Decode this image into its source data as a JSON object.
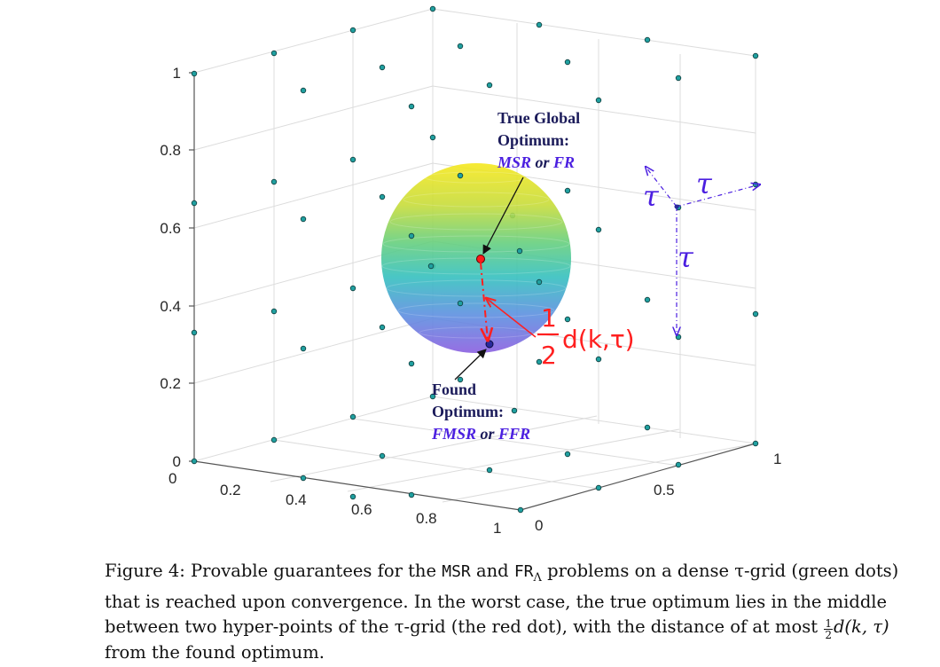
{
  "figure": {
    "z_ticks": [
      "0",
      "0.2",
      "0.4",
      "0.6",
      "0.8",
      "1"
    ],
    "x_ticks": [
      "0",
      "0.2",
      "0.4",
      "0.6",
      "0.8",
      "1"
    ],
    "y_ticks": [
      "0",
      "0.5",
      "1"
    ],
    "annotations": {
      "true_line1": "True Global",
      "true_line2": "Optimum:",
      "true_msr": "MSR",
      "true_or": " or ",
      "true_fr": "FR",
      "found_line1": "Found",
      "found_line2": "Optimum:",
      "found_fmsr": "FMSR",
      "found_or": " or ",
      "found_ffr": "FFR",
      "tau_1": "τ",
      "tau_2": "τ",
      "tau_3": "τ",
      "dist_num": "1",
      "dist_den": "2",
      "dist_expr": "d(k,τ)"
    },
    "colors": {
      "grid_dot": "#20a0a0",
      "true_optimum": "#ff0000",
      "found_optimum": "#1a1a8c",
      "arrow_red": "#ff2020",
      "arrow_blue": "#4b1fe0",
      "sphere_top": "#f5e31f",
      "sphere_mid": "#3ec6b8",
      "sphere_bottom": "#7b60e0"
    }
  },
  "caption": {
    "p1": "Figure 4: Provable guarantees for the ",
    "msr": "MSR",
    "p2": " and ",
    "fr": "FR",
    "fr_sub": "Λ",
    "p3": " problems on a dense τ-grid (green dots) that is reached upon convergence. In the worst case, the true optimum lies in the middle between two hyper-points of the τ-grid (the red dot), with the distance of at most ",
    "frac_num": "1",
    "frac_den": "2",
    "p4": "d(k, τ)",
    "p5": " from the found optimum."
  }
}
